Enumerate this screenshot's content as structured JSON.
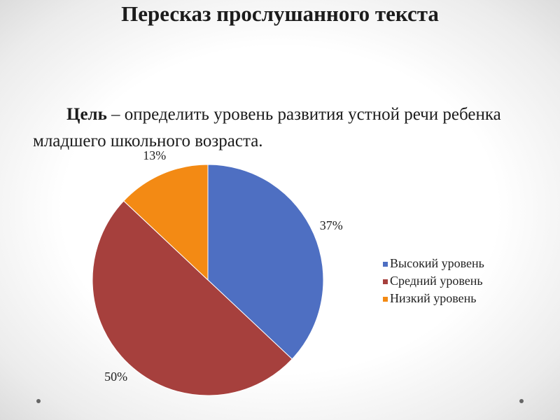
{
  "title": "Пересказ прослушанного текста",
  "goal": {
    "label": "Цель",
    "text": "– определить уровень развития устной речи ребенка младшего школьного возраста."
  },
  "chart_data": {
    "type": "pie",
    "categories": [
      "Высокий уровень",
      "Средний уровень",
      "Низкий уровень"
    ],
    "values": [
      37,
      50,
      13
    ],
    "value_labels": [
      "37%",
      "50%",
      "13%"
    ],
    "colors": [
      "#4e6fc2",
      "#a6403d",
      "#f38a14"
    ],
    "legend": "right"
  }
}
